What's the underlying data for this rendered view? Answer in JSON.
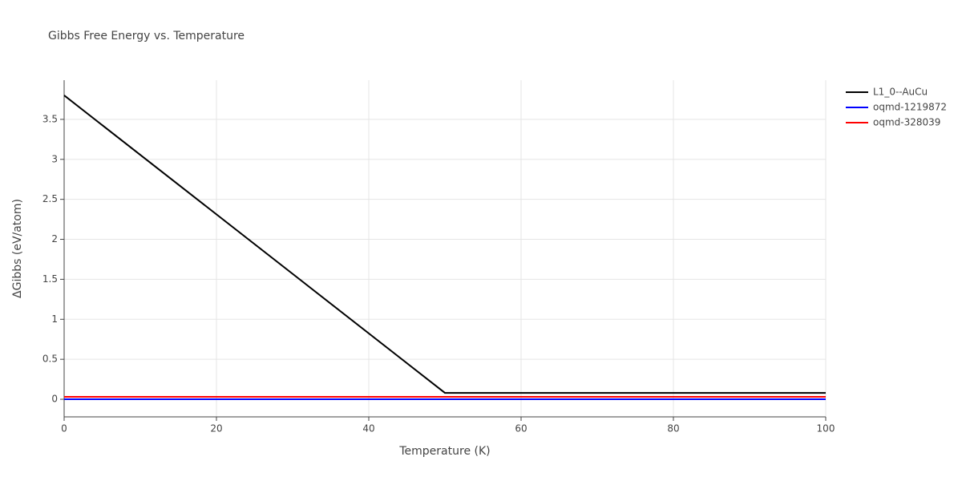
{
  "chart_data": {
    "type": "line",
    "title": "Gibbs Free Energy vs. Temperature",
    "x_label": "Temperature (K)",
    "y_label": "ΔGibbs (eV/atom)",
    "x": [
      0,
      50,
      100
    ],
    "series": [
      {
        "name": "L1_0--AuCu",
        "color": "#000000",
        "values": [
          3.8,
          0.08,
          0.08
        ]
      },
      {
        "name": "oqmd-1219872",
        "color": "#0000ff",
        "values": [
          0,
          0,
          0
        ]
      },
      {
        "name": "oqmd-328039",
        "color": "#ff0000",
        "values": [
          0.03,
          0.03,
          0.03
        ]
      }
    ],
    "xlim": [
      0,
      100
    ],
    "xticks": [
      0,
      20,
      40,
      60,
      80,
      100
    ],
    "ylim": [
      -0.22,
      3.99
    ],
    "yticks": [
      0,
      0.5,
      1,
      1.5,
      2,
      2.5,
      3,
      3.5
    ],
    "grid": true,
    "legend": "outside-right"
  }
}
